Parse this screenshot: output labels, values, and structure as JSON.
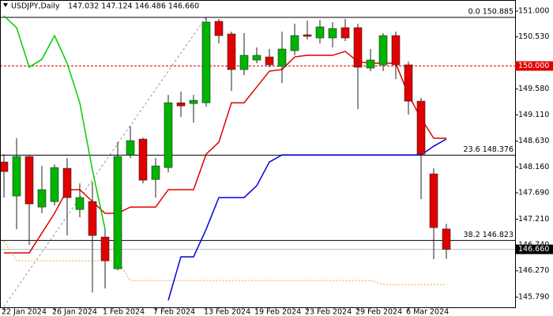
{
  "chart_data": {
    "type": "candlestick",
    "title": "USDJPY,Daily",
    "header": "147.032 147.124 146.486 146.660",
    "categories": [
      "22 Jan 2024",
      null,
      null,
      null,
      "26 Jan 2024",
      null,
      null,
      null,
      "1 Feb 2024",
      null,
      null,
      null,
      "7 Feb 2024",
      null,
      null,
      null,
      "13 Feb 2024",
      null,
      null,
      null,
      "19 Feb 2024",
      null,
      null,
      null,
      "23 Feb 2024",
      null,
      null,
      null,
      "29 Feb 2024",
      null,
      null,
      null,
      "6 Mar 2024",
      null,
      null,
      null
    ],
    "open": [
      148.251,
      147.632,
      148.351,
      147.431,
      147.531,
      148.136,
      147.387,
      147.531,
      146.884,
      146.308,
      148.38,
      148.668,
      147.934,
      148.15,
      149.33,
      149.316,
      149.33,
      150.813,
      150.583,
      149.935,
      150.108,
      150.165,
      149.992,
      150.28,
      150.568,
      150.511,
      150.511,
      150.698,
      150.698,
      149.964,
      150.021,
      150.554,
      150.021,
      149.359,
      148.035,
      147.032
    ],
    "high": [
      148.395,
      148.683,
      148.38,
      148.179,
      148.208,
      148.323,
      147.862,
      147.891,
      147.028,
      148.611,
      148.899,
      148.697,
      148.323,
      149.474,
      149.532,
      149.474,
      150.885,
      150.856,
      150.626,
      150.597,
      150.338,
      150.309,
      150.626,
      150.77,
      150.827,
      150.841,
      150.799,
      150.856,
      150.77,
      150.309,
      150.597,
      150.626,
      150.079,
      149.417,
      148.136,
      147.124
    ],
    "low": [
      147.603,
      147.028,
      146.74,
      147.316,
      147.459,
      146.913,
      147.244,
      145.876,
      145.948,
      146.279,
      148.323,
      147.862,
      147.603,
      148.064,
      149.071,
      148.971,
      149.258,
      150.41,
      149.546,
      149.834,
      150.05,
      149.978,
      149.69,
      150.194,
      150.482,
      150.41,
      150.338,
      150.453,
      149.215,
      149.906,
      149.906,
      149.762,
      149.115,
      147.575,
      146.481,
      146.486
    ],
    "close": [
      148.078,
      148.351,
      147.488,
      147.747,
      148.15,
      147.603,
      147.603,
      146.913,
      146.452,
      148.351,
      148.64,
      147.92,
      148.179,
      149.33,
      149.273,
      149.374,
      150.799,
      150.554,
      149.935,
      150.194,
      150.194,
      150.021,
      150.309,
      150.554,
      150.54,
      150.712,
      150.683,
      150.511,
      149.978,
      150.108,
      150.554,
      150.021,
      149.359,
      148.395,
      147.056,
      146.66
    ],
    "up_color": "#00b400",
    "down_color": "#e00000",
    "indicators": [
      {
        "color": "#e00000",
        "style": "solid",
        "values": [
          146.596,
          146.596,
          146.596,
          146.956,
          147.316,
          147.747,
          147.747,
          147.531,
          147.316,
          147.316,
          147.43,
          147.43,
          147.43,
          147.747,
          147.747,
          147.747,
          148.395,
          148.611,
          149.33,
          149.33,
          149.618,
          149.906,
          149.935,
          150.165,
          150.194,
          150.194,
          150.194,
          150.266,
          150.079,
          150.05,
          150.05,
          150.05,
          149.474,
          149.043,
          148.683,
          148.683
        ]
      },
      {
        "color": "#0000dd",
        "style": "solid",
        "values": [
          null,
          null,
          null,
          null,
          null,
          null,
          null,
          null,
          null,
          null,
          null,
          null,
          null,
          145.732,
          146.524,
          146.524,
          147.028,
          147.603,
          147.603,
          147.603,
          147.819,
          148.251,
          148.38,
          148.38,
          148.38,
          148.38,
          148.38,
          148.38,
          148.38,
          148.38,
          148.38,
          148.38,
          148.38,
          148.38,
          148.539,
          148.669
        ]
      },
      {
        "color": "#00cc00",
        "style": "solid",
        "values": [
          150.914,
          150.698,
          149.978,
          150.122,
          150.554,
          150.05,
          149.33,
          148.107,
          147.028,
          null,
          null,
          null,
          null,
          null,
          null,
          null,
          null,
          null,
          null,
          null,
          null,
          null,
          null,
          null,
          null,
          null,
          null,
          null,
          null,
          null,
          null,
          null,
          null,
          null,
          null,
          null
        ]
      },
      {
        "color": "#f0a040",
        "style": "dotted",
        "values": [
          146.812,
          146.452,
          146.452,
          146.452,
          146.452,
          146.452,
          146.452,
          146.452,
          146.452,
          146.452,
          146.092,
          146.092,
          146.092,
          146.092,
          146.092,
          146.092,
          146.092,
          146.092,
          146.092,
          146.092,
          146.092,
          146.092,
          146.092,
          146.092,
          146.092,
          146.092,
          146.092,
          146.092,
          146.092,
          146.092,
          146.02,
          146.02,
          146.02,
          146.02,
          146.02,
          146.02
        ]
      }
    ],
    "levels": [
      {
        "value": 150.885,
        "label": "0.0 150.885"
      },
      {
        "value": 148.376,
        "label": "23.6 148.376"
      },
      {
        "value": 146.823,
        "label": "38.2 146.823"
      }
    ],
    "alert_level": {
      "value": 150,
      "label": "150.000"
    },
    "last_price": {
      "value": 146.66,
      "label": "146.660"
    },
    "ylim": [
      145.59,
      151.13
    ],
    "yticks": [
      {
        "value": 151,
        "label": "151.000"
      },
      {
        "value": 150.53,
        "label": "150.530"
      },
      {
        "value": 149.58,
        "label": "149.580"
      },
      {
        "value": 149.11,
        "label": "149.110"
      },
      {
        "value": 148.63,
        "label": "148.630"
      },
      {
        "value": 148.16,
        "label": "148.160"
      },
      {
        "value": 147.69,
        "label": "147.690"
      },
      {
        "value": 147.21,
        "label": "147.210"
      },
      {
        "value": 146.74,
        "label": "146.740"
      },
      {
        "value": 146.27,
        "label": "146.270"
      },
      {
        "value": 145.79,
        "label": "145.790"
      }
    ]
  }
}
